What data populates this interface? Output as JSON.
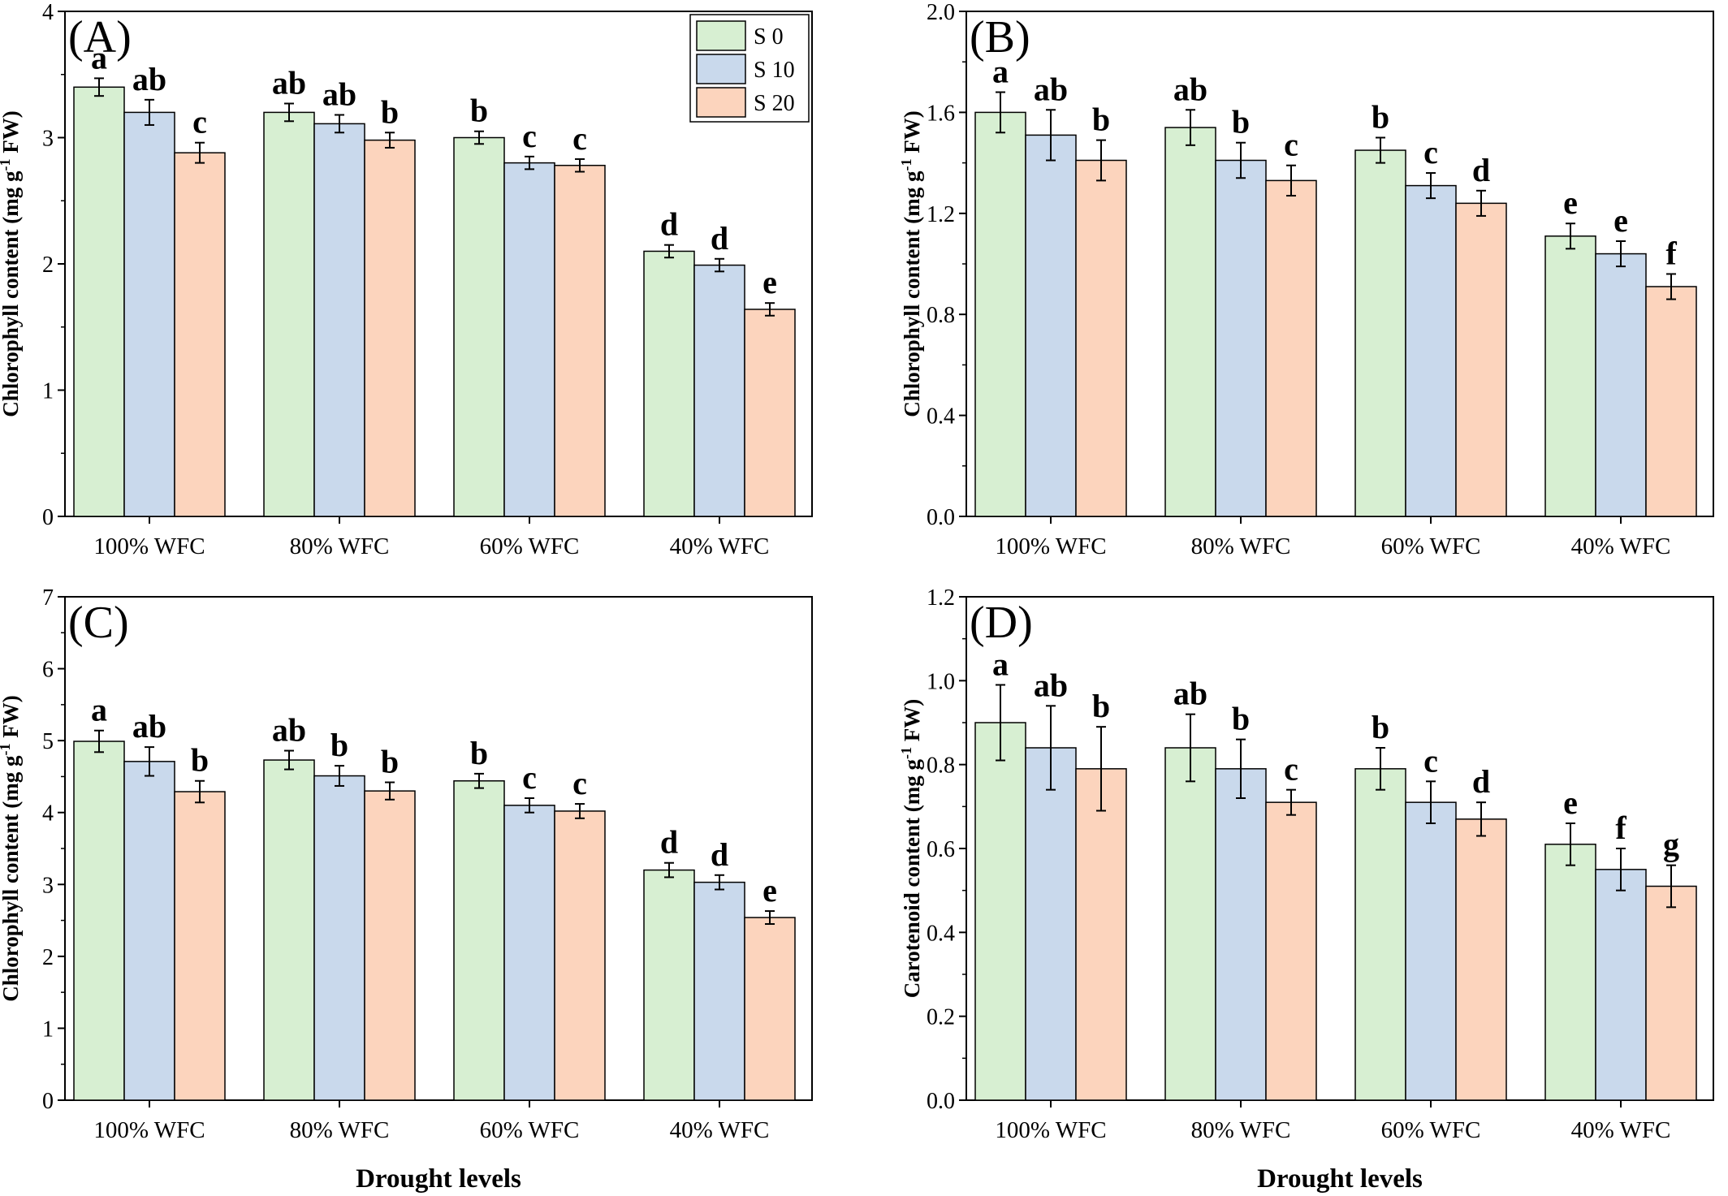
{
  "colors": {
    "s0": "#d7efd2",
    "s10": "#c9d9ec",
    "s20": "#fcd4bd"
  },
  "legend": [
    {
      "label": "S 0",
      "color": "#d7efd2"
    },
    {
      "label": "S 10",
      "color": "#c9d9ec"
    },
    {
      "label": "S 20",
      "color": "#fcd4bd"
    }
  ],
  "chart_data": [
    {
      "type": "bar",
      "panel": "(A)",
      "categories": [
        "100% WFC",
        "80% WFC",
        "60% WFC",
        "40% WFC"
      ],
      "xlabel": "",
      "ylabel": "Chlorophyll content (mg g-1 FW)",
      "ylim": [
        0,
        4
      ],
      "yticks": [
        "0",
        "1",
        "2",
        "3",
        "4"
      ],
      "legend_position": "top-right",
      "series": [
        {
          "name": "S 0",
          "values": [
            3.4,
            3.2,
            3.0,
            2.1
          ],
          "errors": [
            0.07,
            0.07,
            0.05,
            0.05
          ],
          "letters": [
            "a",
            "ab",
            "b",
            "d"
          ]
        },
        {
          "name": "S 10",
          "values": [
            3.2,
            3.11,
            2.8,
            1.99
          ],
          "errors": [
            0.1,
            0.07,
            0.05,
            0.05
          ],
          "letters": [
            "ab",
            "ab",
            "c",
            "d"
          ]
        },
        {
          "name": "S 20",
          "values": [
            2.88,
            2.98,
            2.78,
            1.64
          ],
          "errors": [
            0.08,
            0.06,
            0.05,
            0.05
          ],
          "letters": [
            "c",
            "b",
            "c",
            "e"
          ]
        }
      ]
    },
    {
      "type": "bar",
      "panel": "(B)",
      "categories": [
        "100% WFC",
        "80% WFC",
        "60% WFC",
        "40% WFC"
      ],
      "xlabel": "",
      "ylabel": "Chlorophyll content (mg g-1 FW)",
      "ylim": [
        0,
        2
      ],
      "yticks": [
        "0.0",
        "0.4",
        "0.8",
        "1.2",
        "1.6",
        "2.0"
      ],
      "series": [
        {
          "name": "S 0",
          "values": [
            1.6,
            1.54,
            1.45,
            1.11
          ],
          "errors": [
            0.08,
            0.07,
            0.05,
            0.05
          ],
          "letters": [
            "a",
            "ab",
            "b",
            "e"
          ]
        },
        {
          "name": "S 10",
          "values": [
            1.51,
            1.41,
            1.31,
            1.04
          ],
          "errors": [
            0.1,
            0.07,
            0.05,
            0.05
          ],
          "letters": [
            "ab",
            "b",
            "c",
            "e"
          ]
        },
        {
          "name": "S 20",
          "values": [
            1.41,
            1.33,
            1.24,
            0.91
          ],
          "errors": [
            0.08,
            0.06,
            0.05,
            0.05
          ],
          "letters": [
            "b",
            "c",
            "d",
            "f"
          ]
        }
      ]
    },
    {
      "type": "bar",
      "panel": "(C)",
      "categories": [
        "100% WFC",
        "80% WFC",
        "60% WFC",
        "40% WFC"
      ],
      "xlabel": "Drought levels",
      "ylabel": "Chlorophyll content (mg g-1 FW)",
      "ylim": [
        0,
        7
      ],
      "yticks": [
        "0",
        "1",
        "2",
        "3",
        "4",
        "5",
        "6",
        "7"
      ],
      "series": [
        {
          "name": "S 0",
          "values": [
            4.99,
            4.73,
            4.44,
            3.2
          ],
          "errors": [
            0.15,
            0.13,
            0.1,
            0.1
          ],
          "letters": [
            "a",
            "ab",
            "b",
            "d"
          ]
        },
        {
          "name": "S 10",
          "values": [
            4.71,
            4.51,
            4.1,
            3.03
          ],
          "errors": [
            0.2,
            0.14,
            0.1,
            0.1
          ],
          "letters": [
            "ab",
            "b",
            "c",
            "d"
          ]
        },
        {
          "name": "S 20",
          "values": [
            4.29,
            4.3,
            4.02,
            2.54
          ],
          "errors": [
            0.15,
            0.12,
            0.1,
            0.09
          ],
          "letters": [
            "b",
            "b",
            "c",
            "e"
          ]
        }
      ]
    },
    {
      "type": "bar",
      "panel": "(D)",
      "categories": [
        "100% WFC",
        "80% WFC",
        "60% WFC",
        "40% WFC"
      ],
      "xlabel": "Drought levels",
      "ylabel": "Carotenoid content (mg g-1 FW)",
      "ylim": [
        0,
        1.2
      ],
      "yticks": [
        "0.0",
        "0.2",
        "0.4",
        "0.6",
        "0.8",
        "1.0",
        "1.2"
      ],
      "series": [
        {
          "name": "S 0",
          "values": [
            0.9,
            0.84,
            0.79,
            0.61
          ],
          "errors": [
            0.09,
            0.08,
            0.05,
            0.05
          ],
          "letters": [
            "a",
            "ab",
            "b",
            "e"
          ]
        },
        {
          "name": "S 10",
          "values": [
            0.84,
            0.79,
            0.71,
            0.55
          ],
          "errors": [
            0.1,
            0.07,
            0.05,
            0.05
          ],
          "letters": [
            "ab",
            "b",
            "c",
            "f"
          ]
        },
        {
          "name": "S 20",
          "values": [
            0.79,
            0.71,
            0.67,
            0.51
          ],
          "errors": [
            0.1,
            0.03,
            0.04,
            0.05
          ],
          "letters": [
            "b",
            "c",
            "d",
            "g"
          ]
        }
      ]
    }
  ]
}
